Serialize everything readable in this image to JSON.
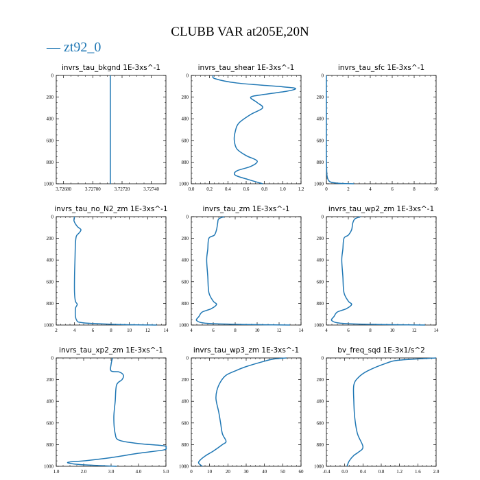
{
  "title": "CLUBB VAR at205E,20N",
  "legend": {
    "label": "— zt92_0",
    "color": "#1f77b4"
  },
  "chart_data": [
    {
      "type": "line",
      "title": "invrs_tau_bkgnd   1E-3xs^-1",
      "xlim": [
        3.72675,
        3.7275
      ],
      "ylim": [
        0,
        1000
      ],
      "y_inverted": true,
      "xticks": [
        "3.72680",
        "3.72700",
        "3.72720",
        "3.72740"
      ],
      "xtick_values": [
        3.7268,
        3.727,
        3.7272,
        3.7274
      ],
      "yticks": [
        "0",
        "200",
        "400",
        "600",
        "800",
        "1000"
      ],
      "series": [
        {
          "points": [
            [
              3.72712,
              0
            ],
            [
              3.72712,
              1000
            ]
          ]
        }
      ]
    },
    {
      "type": "line",
      "title": "invrs_tau_shear   1E-3xs^-1",
      "xlim": [
        0,
        1.2
      ],
      "ylim": [
        0,
        1000
      ],
      "y_inverted": true,
      "xticks": [
        "0.0",
        "0.2",
        "0.4",
        "0.6",
        "0.8",
        "1.0",
        "1.2"
      ],
      "xtick_values": [
        0,
        0.2,
        0.4,
        0.6,
        0.8,
        1.0,
        1.2
      ],
      "yticks": [
        "0",
        "200",
        "400",
        "600",
        "800",
        "1000"
      ],
      "series": [
        {
          "points": [
            [
              0.24,
              0
            ],
            [
              0.26,
              30
            ],
            [
              0.5,
              70
            ],
            [
              1.0,
              105
            ],
            [
              1.14,
              120
            ],
            [
              1.05,
              145
            ],
            [
              0.8,
              175
            ],
            [
              0.65,
              200
            ],
            [
              0.72,
              250
            ],
            [
              0.78,
              300
            ],
            [
              0.65,
              360
            ],
            [
              0.52,
              440
            ],
            [
              0.48,
              520
            ],
            [
              0.47,
              600
            ],
            [
              0.5,
              680
            ],
            [
              0.6,
              740
            ],
            [
              0.72,
              790
            ],
            [
              0.65,
              840
            ],
            [
              0.5,
              880
            ],
            [
              0.48,
              920
            ],
            [
              0.62,
              960
            ],
            [
              0.78,
              1000
            ]
          ]
        }
      ]
    },
    {
      "type": "line",
      "title": "invrs_tau_sfc   1E-3xs^-1",
      "xlim": [
        0,
        10
      ],
      "ylim": [
        0,
        1000
      ],
      "y_inverted": true,
      "xticks": [
        "0",
        "2",
        "4",
        "6",
        "8",
        "10"
      ],
      "xtick_values": [
        0,
        2,
        4,
        6,
        8,
        10
      ],
      "yticks": [
        "0",
        "200",
        "400",
        "600",
        "800",
        "1000"
      ],
      "series": [
        {
          "points": [
            [
              0,
              0
            ],
            [
              0,
              700
            ],
            [
              0.02,
              850
            ],
            [
              0.05,
              920
            ],
            [
              0.15,
              960
            ],
            [
              0.4,
              985
            ],
            [
              1.2,
              996
            ],
            [
              2.5,
              1000
            ]
          ]
        }
      ]
    },
    {
      "type": "line",
      "title": "invrs_tau_no_N2_zm   1E-3xs^-1",
      "xlim": [
        2,
        14
      ],
      "ylim": [
        0,
        1000
      ],
      "y_inverted": true,
      "xticks": [
        "2",
        "4",
        "6",
        "8",
        "10",
        "12",
        "14"
      ],
      "xtick_values": [
        2,
        4,
        6,
        8,
        10,
        12,
        14
      ],
      "yticks": [
        "0",
        "200",
        "400",
        "600",
        "800",
        "1000"
      ],
      "series": [
        {
          "points": [
            [
              4.0,
              0
            ],
            [
              3.95,
              40
            ],
            [
              4.3,
              90
            ],
            [
              4.7,
              120
            ],
            [
              4.5,
              150
            ],
            [
              4.2,
              180
            ],
            [
              4.1,
              250
            ],
            [
              4.05,
              400
            ],
            [
              4.0,
              550
            ],
            [
              4.0,
              700
            ],
            [
              4.1,
              780
            ],
            [
              4.3,
              810
            ],
            [
              4.1,
              850
            ],
            [
              4.2,
              950
            ],
            [
              5.0,
              980
            ],
            [
              9.0,
              995
            ],
            [
              13.0,
              1000
            ]
          ]
        }
      ]
    },
    {
      "type": "line",
      "title": "invrs_tau_zm   1E-3xs^-1",
      "xlim": [
        4,
        14
      ],
      "ylim": [
        0,
        1000
      ],
      "y_inverted": true,
      "xticks": [
        "4",
        "6",
        "8",
        "10",
        "12",
        "14"
      ],
      "xtick_values": [
        4,
        6,
        8,
        10,
        12,
        14
      ],
      "yticks": [
        "0",
        "200",
        "400",
        "600",
        "800",
        "1000"
      ],
      "series": [
        {
          "points": [
            [
              7.0,
              0
            ],
            [
              6.5,
              20
            ],
            [
              6.4,
              60
            ],
            [
              6.3,
              120
            ],
            [
              6.1,
              170
            ],
            [
              5.6,
              200
            ],
            [
              5.5,
              300
            ],
            [
              5.4,
              400
            ],
            [
              5.5,
              550
            ],
            [
              5.6,
              700
            ],
            [
              6.0,
              780
            ],
            [
              6.3,
              810
            ],
            [
              5.8,
              850
            ],
            [
              5.0,
              880
            ],
            [
              4.7,
              920
            ],
            [
              4.5,
              960
            ],
            [
              5.5,
              985
            ],
            [
              9.0,
              995
            ],
            [
              13.0,
              1000
            ]
          ]
        }
      ]
    },
    {
      "type": "line",
      "title": "invrs_tau_wp2_zm   1E-3xs^-1",
      "xlim": [
        4,
        14
      ],
      "ylim": [
        0,
        1000
      ],
      "y_inverted": true,
      "xticks": [
        "4",
        "6",
        "8",
        "10",
        "12",
        "14"
      ],
      "xtick_values": [
        4,
        6,
        8,
        10,
        12,
        14
      ],
      "yticks": [
        "0",
        "200",
        "400",
        "600",
        "800",
        "1000"
      ],
      "series": [
        {
          "points": [
            [
              7.1,
              0
            ],
            [
              6.6,
              20
            ],
            [
              6.4,
              60
            ],
            [
              6.3,
              120
            ],
            [
              6.0,
              170
            ],
            [
              5.6,
              200
            ],
            [
              5.5,
              300
            ],
            [
              5.4,
              400
            ],
            [
              5.5,
              550
            ],
            [
              5.6,
              700
            ],
            [
              6.0,
              780
            ],
            [
              6.3,
              810
            ],
            [
              5.8,
              850
            ],
            [
              5.0,
              880
            ],
            [
              4.7,
              920
            ],
            [
              4.5,
              960
            ],
            [
              5.5,
              985
            ],
            [
              9.0,
              995
            ],
            [
              13.0,
              1000
            ]
          ]
        }
      ]
    },
    {
      "type": "line",
      "title": "invrs_tau_xp2_zm   1E-3xs^-1",
      "xlim": [
        1.0,
        5.0
      ],
      "ylim": [
        0,
        1000
      ],
      "y_inverted": true,
      "xticks": [
        "1.0",
        "2.0",
        "3.0",
        "4.0",
        "5.0"
      ],
      "xtick_values": [
        1.0,
        2.0,
        3.0,
        4.0,
        5.0
      ],
      "yticks": [
        "0",
        "200",
        "400",
        "600",
        "800",
        "1000"
      ],
      "series": [
        {
          "points": [
            [
              3.05,
              0
            ],
            [
              3.0,
              60
            ],
            [
              3.0,
              120
            ],
            [
              3.3,
              130
            ],
            [
              3.45,
              160
            ],
            [
              3.4,
              200
            ],
            [
              3.2,
              250
            ],
            [
              3.15,
              400
            ],
            [
              3.1,
              550
            ],
            [
              3.15,
              700
            ],
            [
              3.3,
              760
            ],
            [
              4.0,
              790
            ],
            [
              4.9,
              810
            ],
            [
              5.0,
              830
            ],
            [
              4.9,
              850
            ],
            [
              4.0,
              880
            ],
            [
              3.0,
              920
            ],
            [
              2.0,
              950
            ],
            [
              1.5,
              960
            ],
            [
              1.45,
              970
            ],
            [
              1.9,
              985
            ],
            [
              3.2,
              1000
            ]
          ]
        }
      ]
    },
    {
      "type": "line",
      "title": "invrs_tau_wp3_zm   1E-3xs^-1",
      "xlim": [
        0,
        60
      ],
      "ylim": [
        0,
        1000
      ],
      "y_inverted": true,
      "xticks": [
        "0",
        "10",
        "20",
        "30",
        "40",
        "50",
        "60"
      ],
      "xtick_values": [
        0,
        10,
        20,
        30,
        40,
        50,
        60
      ],
      "yticks": [
        "0",
        "200",
        "400",
        "600",
        "800",
        "1000"
      ],
      "series": [
        {
          "points": [
            [
              52,
              0
            ],
            [
              45,
              10
            ],
            [
              40,
              30
            ],
            [
              30,
              80
            ],
            [
              24,
              120
            ],
            [
              19,
              160
            ],
            [
              16,
              220
            ],
            [
              14,
              300
            ],
            [
              13.5,
              380
            ],
            [
              15,
              500
            ],
            [
              16,
              600
            ],
            [
              17,
              700
            ],
            [
              19,
              770
            ],
            [
              17,
              800
            ],
            [
              12,
              860
            ],
            [
              8,
              900
            ],
            [
              5,
              940
            ],
            [
              4,
              970
            ],
            [
              6,
              1000
            ]
          ]
        }
      ]
    },
    {
      "type": "line",
      "title": "bv_freq_sqd   1E-3x1/s^2",
      "xlim": [
        -0.4,
        2.0
      ],
      "ylim": [
        0,
        1000
      ],
      "y_inverted": true,
      "xticks": [
        "-0.4",
        "0.0",
        "0.4",
        "0.8",
        "1.2",
        "1.6",
        "2.0"
      ],
      "xtick_values": [
        -0.4,
        0.0,
        0.4,
        0.8,
        1.2,
        1.6,
        2.0
      ],
      "yticks": [
        "0",
        "200",
        "400",
        "600",
        "800",
        "1000"
      ],
      "series": [
        {
          "points": [
            [
              2.0,
              0
            ],
            [
              1.2,
              20
            ],
            [
              0.9,
              50
            ],
            [
              0.5,
              120
            ],
            [
              0.3,
              180
            ],
            [
              0.2,
              250
            ],
            [
              0.2,
              400
            ],
            [
              0.22,
              550
            ],
            [
              0.28,
              700
            ],
            [
              0.4,
              820
            ],
            [
              0.3,
              870
            ],
            [
              0.2,
              900
            ],
            [
              0.1,
              950
            ],
            [
              0.05,
              1000
            ]
          ]
        }
      ]
    }
  ]
}
